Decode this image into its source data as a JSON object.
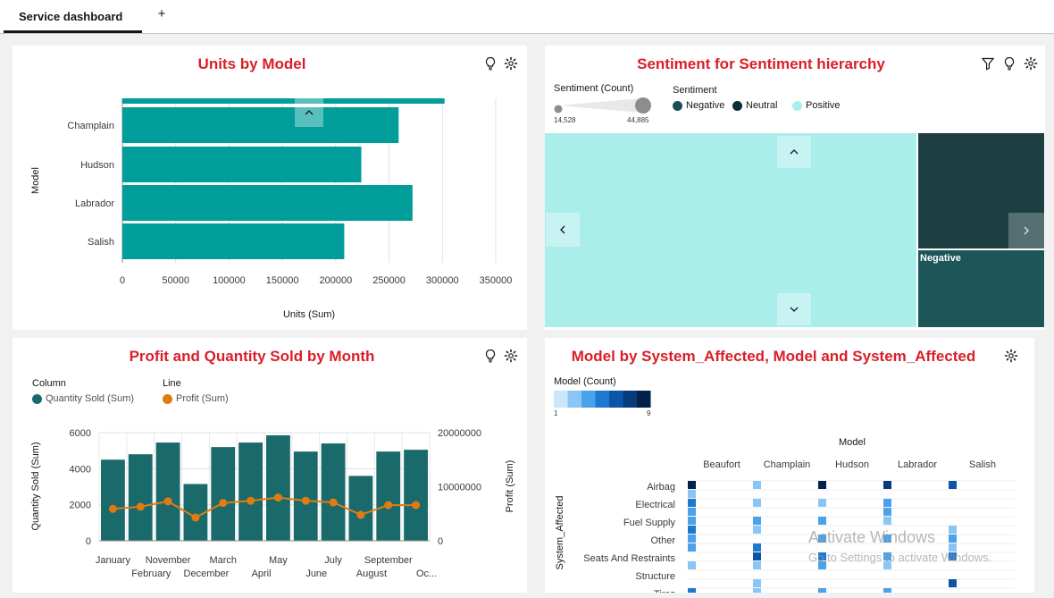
{
  "tabs": {
    "active_label": "Service dashboard",
    "add_label": "+"
  },
  "units_panel": {
    "title": "Units by Model",
    "chart_data": {
      "type": "bar",
      "orientation": "horizontal",
      "categories": [
        "Champlain",
        "Hudson",
        "Labrador",
        "Salish"
      ],
      "values": [
        259000,
        224000,
        272000,
        208000
      ],
      "partial_top_bar_value": 302000,
      "xlabel": "Units (Sum)",
      "ylabel": "Model",
      "xlim": [
        0,
        350000
      ],
      "xticks": [
        "0",
        "50000",
        "100000",
        "150000",
        "200000",
        "250000",
        "300000",
        "350000"
      ],
      "grid": true,
      "color": "#009d9a"
    }
  },
  "sentiment_panel": {
    "title": "Sentiment for Sentiment hierarchy",
    "size_legend": {
      "title": "Sentiment (Count)",
      "min": "14,528",
      "max": "44,885"
    },
    "color_legend": {
      "title": "Sentiment",
      "items": [
        {
          "label": "Negative",
          "color": "#1a4f52"
        },
        {
          "label": "Neutral",
          "color": "#0b2d39"
        },
        {
          "label": "Positive",
          "color": "#a9efed"
        }
      ]
    },
    "chart_data": {
      "type": "treemap",
      "visible_label": "Negative",
      "colors": {
        "positive": "#a9eeeb",
        "upper": "#1d3f41",
        "negative": "#1c5658"
      }
    }
  },
  "profit_panel": {
    "title": "Profit and Quantity Sold by Month",
    "legend_column_title": "Column",
    "legend_column_item": "Quantity Sold (Sum)",
    "legend_line_title": "Line",
    "legend_line_item": "Profit (Sum)",
    "chart_data": {
      "type": "bar",
      "categories": [
        "January",
        "February",
        "November",
        "December",
        "March",
        "April",
        "May",
        "June",
        "July",
        "August",
        "September",
        "Oc..."
      ],
      "series": [
        {
          "name": "Quantity Sold (Sum)",
          "type": "bar",
          "axis": "left",
          "color": "#1b6a6b",
          "values": [
            4500,
            4800,
            5450,
            3150,
            5200,
            5450,
            5850,
            4950,
            5400,
            3600,
            4950,
            5050
          ]
        },
        {
          "name": "Profit (Sum)",
          "type": "line",
          "axis": "right",
          "color": "#e07b12",
          "values": [
            5900000,
            6300000,
            7300000,
            4300000,
            7000000,
            7400000,
            8000000,
            7400000,
            7100000,
            4800000,
            6600000,
            6600000
          ]
        }
      ],
      "ylabel": "Quantity Sold (Sum)",
      "ylim": [
        0,
        6000
      ],
      "yticks": [
        "0",
        "2000",
        "4000",
        "6000"
      ],
      "y2label": "Profit (Sum)",
      "y2lim": [
        0,
        20000000
      ],
      "y2ticks": [
        "0",
        "10000000",
        "20000000"
      ],
      "xlabels_row1": [
        "January",
        "November",
        "March",
        "May",
        "July",
        "September"
      ],
      "xlabels_row2": [
        "February",
        "December",
        "April",
        "June",
        "August",
        "Oc..."
      ]
    }
  },
  "heatmap_panel": {
    "title": "Model by System_Affected, Model and System_Affected",
    "legend_title": "Model (Count)",
    "legend_min": "1",
    "legend_max": "9",
    "legend_colors": [
      "#c9e6fb",
      "#8ac6f5",
      "#4aa2ea",
      "#1f78cf",
      "#0b55a8",
      "#063c7c",
      "#03214a"
    ],
    "chart_data": {
      "type": "heatmap",
      "xlabel": "Model",
      "ylabel": "System_Affected",
      "columns": [
        "Beaufort",
        "Champlain",
        "Hudson",
        "Labrador",
        "Salish"
      ],
      "rows": [
        "Airbag",
        "Electrical",
        "Fuel Supply",
        "Other",
        "Seats And Restraints",
        "Structure",
        "Tires"
      ]
    }
  },
  "watermark": {
    "line1": "Activate Windows",
    "line2": "Go to Settings to activate Windows."
  },
  "icons": [
    "lightbulb-icon",
    "settings-icon",
    "filter-icon",
    "chevron-up-icon",
    "chevron-down-icon",
    "chevron-left-icon",
    "chevron-right-icon"
  ]
}
